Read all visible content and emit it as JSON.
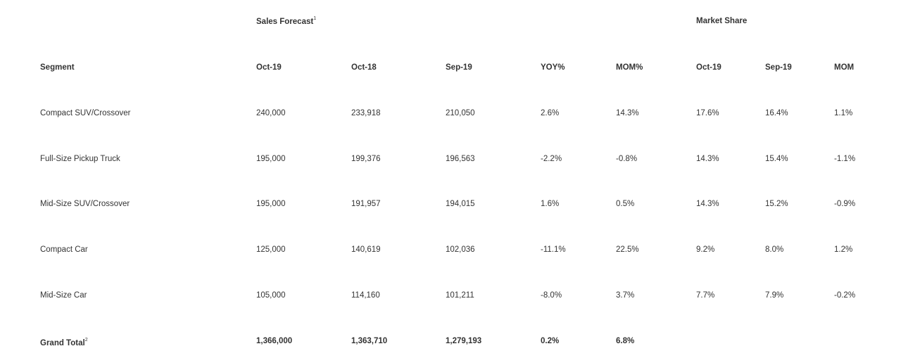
{
  "group_headers": {
    "sales_forecast": "Sales Forecast",
    "sales_forecast_note": "1",
    "market_share": "Market Share"
  },
  "columns": [
    "Segment",
    "Oct-19",
    "Oct-18",
    "Sep-19",
    "YOY%",
    "MOM%",
    "Oct-19",
    "Sep-19",
    "MOM"
  ],
  "rows": [
    [
      "Compact SUV/Crossover",
      "240,000",
      "233,918",
      "210,050",
      "2.6%",
      "14.3%",
      "17.6%",
      "16.4%",
      "1.1%"
    ],
    [
      "Full-Size Pickup Truck",
      "195,000",
      "199,376",
      "196,563",
      "-2.2%",
      "-0.8%",
      "14.3%",
      "15.4%",
      "-1.1%"
    ],
    [
      "Mid-Size SUV/Crossover",
      "195,000",
      "191,957",
      "194,015",
      "1.6%",
      "0.5%",
      "14.3%",
      "15.2%",
      "-0.9%"
    ],
    [
      "Compact Car",
      "125,000",
      "140,619",
      "102,036",
      "-11.1%",
      "22.5%",
      "9.2%",
      "8.0%",
      "1.2%"
    ],
    [
      "Mid-Size Car",
      "105,000",
      "114,160",
      "101,211",
      "-8.0%",
      "3.7%",
      "7.7%",
      "7.9%",
      "-0.2%"
    ]
  ],
  "total": {
    "label": "Grand Total",
    "note": "2",
    "values": [
      "1,366,000",
      "1,363,710",
      "1,279,193",
      "0.2%",
      "6.8%"
    ]
  }
}
